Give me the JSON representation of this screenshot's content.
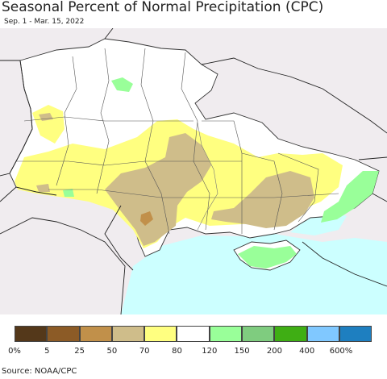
{
  "title": "Seasonal Percent of Normal Precipitation (CPC)",
  "subtitle": "Sep. 1 - Mar. 15, 2022",
  "source": "Source: NOAA/CPC",
  "colors": {
    "background_outside": "#f0ecef",
    "sea": "#ccffff",
    "normal": "#ffffff",
    "yellow": "#ffff80",
    "tan": "#cfbd8a",
    "brown": "#c1904a",
    "light_green": "#99ff99",
    "green": "#7fcc7f",
    "border": "#333333"
  },
  "legend": {
    "colors": [
      "#54381a",
      "#8c5b26",
      "#c1904a",
      "#cfbd8a",
      "#ffff80",
      "#ffffff",
      "#99ff99",
      "#7fcc7f",
      "#3fae14",
      "#80c8ff",
      "#1e7fc0"
    ],
    "labels": [
      "0%",
      "5",
      "25",
      "50",
      "70",
      "80",
      "120",
      "150",
      "200",
      "400",
      "600%"
    ]
  }
}
